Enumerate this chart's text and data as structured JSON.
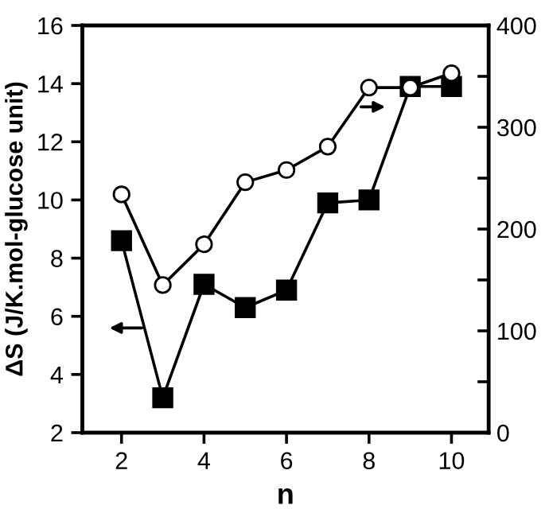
{
  "chart_data": {
    "type": "line",
    "xlabel": "n",
    "ylabel": "ΔS (J/K.mol-glucose unit)",
    "x": [
      2,
      3,
      4,
      5,
      6,
      7,
      8,
      9,
      10
    ],
    "series": [
      {
        "color": "#000000",
        "marker": "square",
        "values": [
          8.6,
          3.2,
          7.1,
          6.3,
          6.9,
          9.9,
          10.0,
          13.9,
          13.9
        ]
      },
      {
        "color": "#000000",
        "marker": "circle",
        "axis": "y2",
        "values": [
          234,
          145,
          185,
          246,
          258,
          281,
          339,
          339,
          353
        ]
      }
    ],
    "xlim": [
      1.05,
      10.9
    ],
    "xticks": [
      2,
      4,
      6,
      8,
      10
    ],
    "ylim": [
      2,
      16
    ],
    "yticks": [
      2,
      4,
      6,
      8,
      10,
      12,
      14,
      16
    ],
    "y2lim": [
      0,
      400
    ],
    "y2ticks": [
      0,
      {
        "value": 50,
        "label": null
      },
      100,
      {
        "value": 150,
        "label": null
      },
      200,
      {
        "value": 250,
        "label": null
      },
      300,
      {
        "value": 350,
        "label": null
      },
      400
    ],
    "line_style": "solid",
    "grid": false,
    "legend": false
  }
}
